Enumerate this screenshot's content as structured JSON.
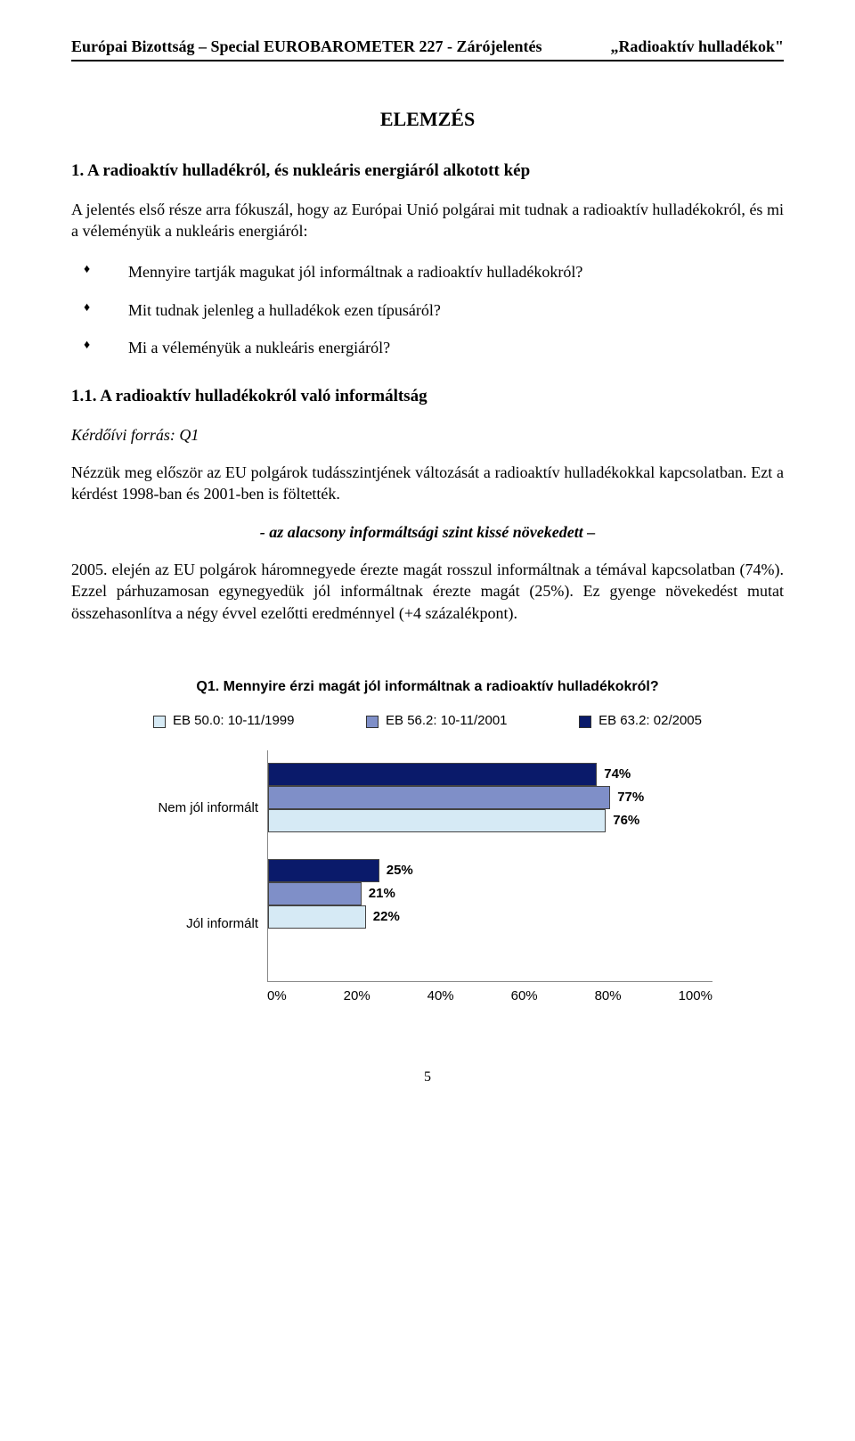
{
  "header": {
    "left": "Európai Bizottság – Special EUROBAROMETER 227 - Zárójelentés",
    "right": "„Radioaktív hulladékok\""
  },
  "title": "ELEMZÉS",
  "section1": {
    "heading": "1. A radioaktív hulladékról, és nukleáris energiáról alkotott kép",
    "intro": "A jelentés első része arra fókuszál, hogy az Európai Unió polgárai mit tudnak a radioaktív hulladékokról, és mi a véleményük a nukleáris energiáról:",
    "bullets": [
      "Mennyire tartják magukat jól informáltnak a radioaktív hulladékokról?",
      "Mit tudnak jelenleg a hulladékok ezen típusáról?",
      "Mi a véleményük a nukleáris energiáról?"
    ]
  },
  "subsection": {
    "heading": "1.1. A radioaktív hulladékokról való informáltság",
    "source": "Kérdőívi forrás: Q1",
    "para1": "Nézzük meg először az EU polgárok tudásszintjének változását a radioaktív hulladékokkal kapcsolatban. Ezt a kérdést 1998-ban és 2001-ben is föltették.",
    "callout": "- az alacsony informáltsági szint kissé növekedett –",
    "para2": "2005. elején az EU polgárok háromnegyede érezte magát rosszul informáltnak a témával kapcsolatban (74%). Ezzel párhuzamosan egynegyedük jól informáltnak érezte magát (25%). Ez gyenge növekedést mutat összehasonlítva a négy évvel ezelőtti eredménnyel (+4 százalékpont)."
  },
  "chart": {
    "title": "Q1. Mennyire érzi magát jól informáltnak a radioaktív hulladékokról?",
    "legend": [
      {
        "label": "EB 50.0: 10-11/1999",
        "color": "#d6eaf5"
      },
      {
        "label": "EB 56.2: 10-11/2001",
        "color": "#7f8fc8"
      },
      {
        "label": "EB 63.2: 02/2005",
        "color": "#0a1a6a"
      }
    ],
    "categories": [
      {
        "label": "Nem jól informált",
        "bars": [
          {
            "value": 74,
            "color": "#0a1a6a",
            "text": "74%"
          },
          {
            "value": 77,
            "color": "#7f8fc8",
            "text": "77%"
          },
          {
            "value": 76,
            "color": "#d6eaf5",
            "text": "76%"
          }
        ]
      },
      {
        "label": "Jól informált",
        "bars": [
          {
            "value": 25,
            "color": "#0a1a6a",
            "text": "25%"
          },
          {
            "value": 21,
            "color": "#7f8fc8",
            "text": "21%"
          },
          {
            "value": 22,
            "color": "#d6eaf5",
            "text": "22%"
          }
        ]
      }
    ],
    "xticks": [
      "0%",
      "20%",
      "40%",
      "60%",
      "80%",
      "100%"
    ],
    "xmax": 100
  },
  "pageNumber": "5"
}
